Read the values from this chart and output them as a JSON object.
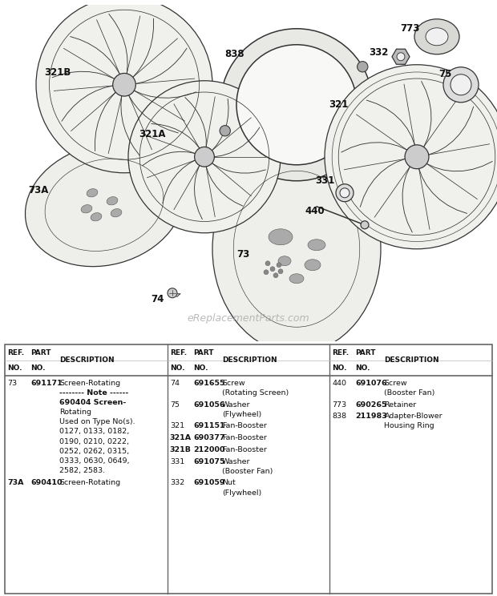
{
  "bg_color": "#ffffff",
  "watermark": "eReplacementParts.com",
  "table_rows": [
    {
      "col": 0,
      "ref": "73",
      "part": "691171",
      "desc_lines": [
        "Screen-Rotating",
        "-------- Note ------",
        "690404 Screen-",
        "Rotating",
        "Used on Type No(s).",
        "0127, 0133, 0182,",
        "0190, 0210, 0222,",
        "0252, 0262, 0315,",
        "0333, 0630, 0649,",
        "2582, 2583."
      ],
      "note_line": 1,
      "bold_lines": [
        2
      ]
    },
    {
      "col": 0,
      "ref": "73A",
      "part": "690410",
      "desc_lines": [
        "Screen-Rotating"
      ],
      "note_line": -1,
      "bold_lines": []
    },
    {
      "col": 1,
      "ref": "74",
      "part": "691655",
      "desc_lines": [
        "Screw",
        "(Rotating Screen)"
      ],
      "note_line": -1,
      "bold_lines": []
    },
    {
      "col": 1,
      "ref": "75",
      "part": "691056",
      "desc_lines": [
        "Washer",
        "(Flywheel)"
      ],
      "note_line": -1,
      "bold_lines": []
    },
    {
      "col": 1,
      "ref": "321",
      "part": "691151",
      "desc_lines": [
        "Fan-Booster"
      ],
      "note_line": -1,
      "bold_lines": []
    },
    {
      "col": 1,
      "ref": "321A",
      "part": "690377",
      "desc_lines": [
        "Fan-Booster"
      ],
      "note_line": -1,
      "bold_lines": []
    },
    {
      "col": 1,
      "ref": "321B",
      "part": "212000",
      "desc_lines": [
        "Fan-Booster"
      ],
      "note_line": -1,
      "bold_lines": []
    },
    {
      "col": 1,
      "ref": "331",
      "part": "691075",
      "desc_lines": [
        "Washer",
        "(Booster Fan)"
      ],
      "note_line": -1,
      "bold_lines": []
    },
    {
      "col": 1,
      "ref": "332",
      "part": "691059",
      "desc_lines": [
        "Nut",
        "(Flywheel)"
      ],
      "note_line": -1,
      "bold_lines": []
    },
    {
      "col": 2,
      "ref": "440",
      "part": "691076",
      "desc_lines": [
        "Screw",
        "(Booster Fan)"
      ],
      "note_line": -1,
      "bold_lines": []
    },
    {
      "col": 2,
      "ref": "773",
      "part": "690265",
      "desc_lines": [
        "Retainer"
      ],
      "note_line": -1,
      "bold_lines": []
    },
    {
      "col": 2,
      "ref": "838",
      "part": "211983",
      "desc_lines": [
        "Adapter-Blower",
        "Housing Ring"
      ],
      "note_line": -1,
      "bold_lines": []
    }
  ]
}
